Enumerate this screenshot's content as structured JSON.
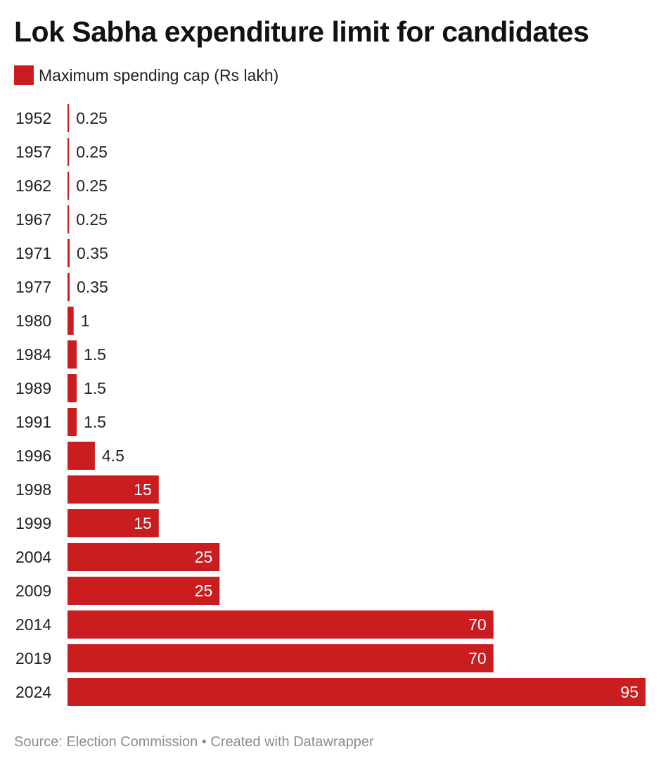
{
  "title": "Lok Sabha expenditure limit for candidates",
  "legend": {
    "label": "Maximum spending cap (Rs lakh)",
    "color": "#c91d1f"
  },
  "footer": {
    "source": "Source: Election Commission",
    "separator": "•",
    "credit": "Created with Datawrapper"
  },
  "chart_data": {
    "type": "bar",
    "orientation": "horizontal",
    "title": "Lok Sabha expenditure limit for candidates",
    "categories": [
      "1952",
      "1957",
      "1962",
      "1967",
      "1971",
      "1977",
      "1980",
      "1984",
      "1989",
      "1991",
      "1996",
      "1998",
      "1999",
      "2004",
      "2009",
      "2014",
      "2019",
      "2024"
    ],
    "series": [
      {
        "name": "Maximum spending cap (Rs lakh)",
        "values": [
          0.25,
          0.25,
          0.25,
          0.25,
          0.35,
          0.35,
          1,
          1.5,
          1.5,
          1.5,
          4.5,
          15,
          15,
          25,
          25,
          70,
          70,
          95
        ],
        "labels": [
          "0.25",
          "0.25",
          "0.25",
          "0.25",
          "0.35",
          "0.35",
          "1",
          "1.5",
          "1.5",
          "1.5",
          "4.5",
          "15",
          "15",
          "25",
          "25",
          "70",
          "70",
          "95"
        ]
      }
    ],
    "xlim": [
      0,
      95
    ],
    "grid": false,
    "legend_position": "top-left",
    "bar_color": "#c91d1f"
  }
}
